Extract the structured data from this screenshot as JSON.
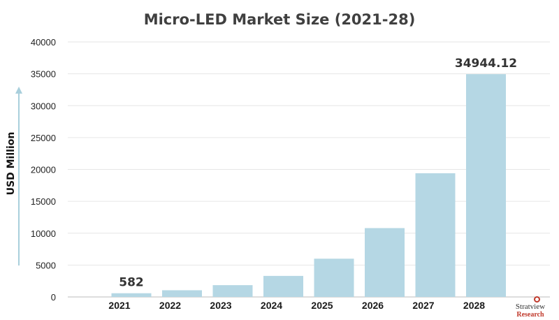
{
  "chart_data": {
    "type": "bar",
    "title": "Micro-LED Market Size (2021-28)",
    "xlabel": "",
    "ylabel": "USD Million",
    "categories": [
      "2021",
      "2022",
      "2023",
      "2024",
      "2025",
      "2026",
      "2027",
      "2028"
    ],
    "values": [
      582,
      1050,
      1850,
      3300,
      6000,
      10800,
      19400,
      34944.12
    ],
    "data_labels": [
      {
        "category": "2021",
        "text": "582"
      },
      {
        "category": "2028",
        "text": "34944.12"
      }
    ],
    "ylim": [
      0,
      40000
    ],
    "yticks": [
      0,
      5000,
      10000,
      15000,
      20000,
      25000,
      30000,
      35000,
      40000
    ],
    "grid": true,
    "legend": "none",
    "bar_color": "#b5d7e4",
    "axis_arrow_color": "#a9cfdc"
  },
  "logo": {
    "top_text": "Stratview",
    "bottom_text": "Research"
  }
}
